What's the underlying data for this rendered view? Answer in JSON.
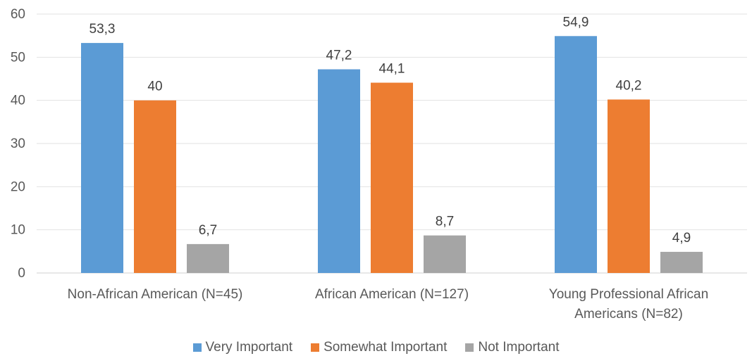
{
  "chart_data": {
    "type": "bar",
    "categories": [
      [
        "Non-African American (N=45)"
      ],
      [
        "African American (N=127)"
      ],
      [
        "Young Professional African",
        "Americans (N=82)"
      ]
    ],
    "series": [
      {
        "name": "Very Important",
        "color": "#5B9BD5",
        "values": [
          53.3,
          47.2,
          54.9
        ],
        "labels": [
          "53,3",
          "47,2",
          "54,9"
        ]
      },
      {
        "name": "Somewhat Important",
        "color": "#ED7D31",
        "values": [
          40,
          44.1,
          40.2
        ],
        "labels": [
          "40",
          "44,1",
          "40,2"
        ]
      },
      {
        "name": "Not Important",
        "color": "#A5A5A5",
        "values": [
          6.7,
          8.7,
          4.9
        ],
        "labels": [
          "6,7",
          "8,7",
          "4,9"
        ]
      }
    ],
    "ylim": [
      0,
      60
    ],
    "yticks": [
      0,
      10,
      20,
      30,
      40,
      50,
      60
    ],
    "grid": true,
    "legend_position": "bottom"
  }
}
